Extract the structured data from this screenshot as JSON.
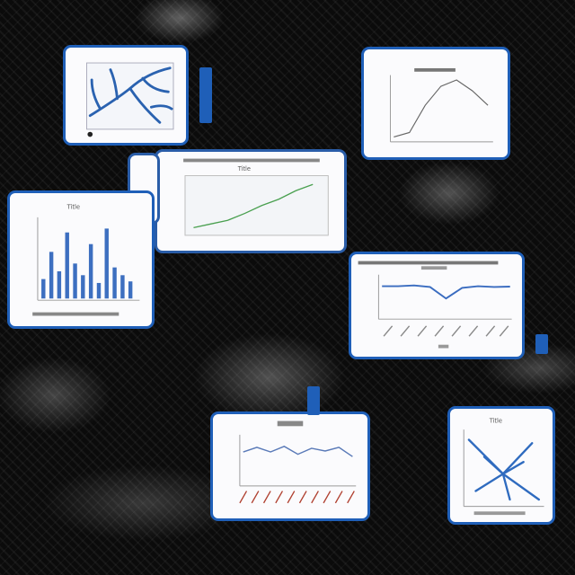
{
  "cards": [
    {
      "id": "network-top-left",
      "type": "network"
    },
    {
      "id": "line-top-right",
      "type": "line",
      "values": [
        0.05,
        0.12,
        0.55,
        0.85,
        0.95,
        0.78,
        0.55
      ]
    },
    {
      "id": "line-upward",
      "type": "line",
      "values": [
        0.08,
        0.15,
        0.22,
        0.35,
        0.5,
        0.62,
        0.78,
        0.9
      ]
    },
    {
      "id": "bar-left",
      "type": "bar",
      "values": [
        0.25,
        0.6,
        0.35,
        0.85,
        0.45,
        0.3,
        0.7,
        0.2,
        0.9,
        0.4,
        0.3,
        0.22
      ]
    },
    {
      "id": "line-flat-dip",
      "type": "line",
      "values": [
        0.72,
        0.72,
        0.74,
        0.7,
        0.42,
        0.68,
        0.72,
        0.7,
        0.71
      ]
    },
    {
      "id": "line-wavy",
      "type": "line",
      "values": [
        0.7,
        0.8,
        0.7,
        0.82,
        0.65,
        0.78,
        0.72,
        0.8,
        0.6
      ]
    },
    {
      "id": "network-bottom-right",
      "type": "network"
    }
  ],
  "text": {
    "card3_label": "Title",
    "card4_label": "Title",
    "card7_label": "Title"
  }
}
